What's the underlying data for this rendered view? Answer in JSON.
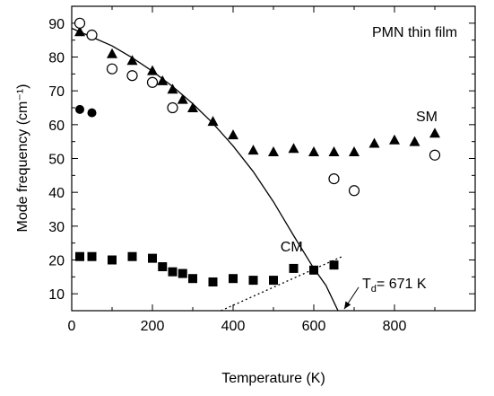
{
  "chart_data": {
    "type": "scatter",
    "title": "",
    "xlabel": "Temperature  (K)",
    "ylabel": "Mode frequency  (cm⁻¹)",
    "xlim": [
      0,
      1000
    ],
    "ylim": [
      5,
      95
    ],
    "xticks": [
      0,
      200,
      400,
      600,
      800
    ],
    "yticks": [
      10,
      20,
      30,
      40,
      50,
      60,
      70,
      80,
      90
    ],
    "grid": false,
    "series": [
      {
        "name": "SM",
        "marker": "filled-triangle",
        "x": [
          20,
          100,
          150,
          200,
          225,
          250,
          275,
          300,
          350,
          400,
          450,
          500,
          550,
          600,
          650,
          700,
          750,
          800,
          850,
          900
        ],
        "y": [
          87.5,
          81,
          79,
          76,
          73,
          70.5,
          67.5,
          65,
          61,
          57,
          52.5,
          52,
          53,
          52,
          52,
          52,
          54.5,
          55.5,
          55,
          57.5
        ]
      },
      {
        "name": "",
        "marker": "open-circle",
        "x": [
          20,
          50,
          100,
          150,
          200,
          250,
          650,
          700,
          900
        ],
        "y": [
          90,
          86.5,
          76.5,
          74.5,
          72.5,
          65,
          44,
          40.5,
          51
        ]
      },
      {
        "name": "",
        "marker": "filled-circle",
        "x": [
          20,
          50
        ],
        "y": [
          64.5,
          63.5
        ]
      },
      {
        "name": "CM",
        "marker": "filled-square",
        "x": [
          20,
          50,
          100,
          150,
          200,
          225,
          250,
          275,
          300,
          350,
          400,
          450,
          500,
          550,
          600,
          650
        ],
        "y": [
          21,
          21,
          20,
          21,
          20.5,
          18,
          16.5,
          16,
          14.5,
          13.5,
          14.5,
          14,
          14,
          17.5,
          17,
          18.5
        ]
      }
    ],
    "fit_lines": [
      {
        "style": "solid",
        "description": "soft mode fit",
        "x": [
          0,
          50,
          100,
          150,
          200,
          250,
          300,
          350,
          400,
          450,
          500,
          550,
          600,
          630,
          650,
          662,
          671
        ],
        "y": [
          88.5,
          85.9,
          83.3,
          79.8,
          75.8,
          71.3,
          66.2,
          60.4,
          53.7,
          46.1,
          37.2,
          27.2,
          17.5,
          12.5,
          7.5,
          4.5,
          0
        ]
      },
      {
        "style": "dotted",
        "description": "central mode trend",
        "x": [
          370,
          670
        ],
        "y": [
          5,
          21
        ]
      }
    ],
    "annotations": [
      {
        "text": "PMN thin film",
        "x": 850,
        "y": 86
      },
      {
        "text": "SM",
        "x": 880,
        "y": 61
      },
      {
        "text": "CM",
        "x": 545,
        "y": 22.5
      }
    ],
    "td_label": {
      "prefix": "T",
      "subscript": "d",
      "suffix": "= 671 K",
      "x": 720,
      "y": 13,
      "arrow_to_x": 671,
      "arrow_to_y": 5.5
    }
  }
}
